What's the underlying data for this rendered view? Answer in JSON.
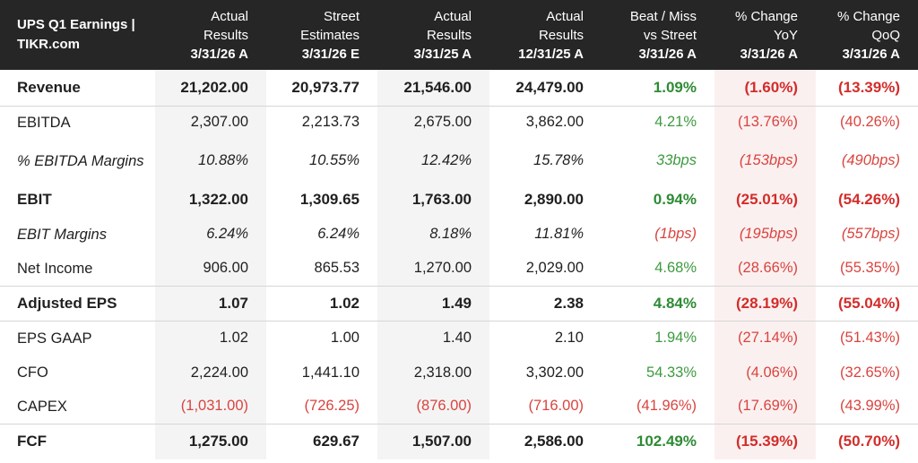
{
  "header": {
    "title_line1": "UPS Q1 Earnings |",
    "title_line2": "TIKR.com",
    "columns": [
      {
        "line1": "Actual",
        "line2": "Results",
        "date": "3/31/26 A"
      },
      {
        "line1": "Street",
        "line2": "Estimates",
        "date": "3/31/26 E"
      },
      {
        "line1": "Actual",
        "line2": "Results",
        "date": "3/31/25 A"
      },
      {
        "line1": "Actual",
        "line2": "Results",
        "date": "12/31/25 A"
      },
      {
        "line1": "Beat / Miss",
        "line2": "vs Street",
        "date": "3/31/26 A"
      },
      {
        "line1": "% Change",
        "line2": "YoY",
        "date": "3/31/26 A"
      },
      {
        "line1": "% Change",
        "line2": "QoQ",
        "date": "3/31/26 A"
      }
    ]
  },
  "rows": [
    {
      "label": "Revenue",
      "actual": "21,202.00",
      "street": "20,973.77",
      "prior_year": "21,546.00",
      "prior_quarter": "24,479.00",
      "beat_miss": "1.09%",
      "yoy": "(1.60%)",
      "qoq": "(13.39%)"
    },
    {
      "label": "EBITDA",
      "actual": "2,307.00",
      "street": "2,213.73",
      "prior_year": "2,675.00",
      "prior_quarter": "3,862.00",
      "beat_miss": "4.21%",
      "yoy": "(13.76%)",
      "qoq": "(40.26%)"
    },
    {
      "label": "% EBITDA Margins",
      "actual": "10.88%",
      "street": "10.55%",
      "prior_year": "12.42%",
      "prior_quarter": "15.78%",
      "beat_miss": "33bps",
      "yoy": "(153bps)",
      "qoq": "(490bps)"
    },
    {
      "label": "EBIT",
      "actual": "1,322.00",
      "street": "1,309.65",
      "prior_year": "1,763.00",
      "prior_quarter": "2,890.00",
      "beat_miss": "0.94%",
      "yoy": "(25.01%)",
      "qoq": "(54.26%)"
    },
    {
      "label": "EBIT Margins",
      "actual": "6.24%",
      "street": "6.24%",
      "prior_year": "8.18%",
      "prior_quarter": "11.81%",
      "beat_miss": "(1bps)",
      "yoy": "(195bps)",
      "qoq": "(557bps)"
    },
    {
      "label": "Net Income",
      "actual": "906.00",
      "street": "865.53",
      "prior_year": "1,270.00",
      "prior_quarter": "2,029.00",
      "beat_miss": "4.68%",
      "yoy": "(28.66%)",
      "qoq": "(55.35%)"
    },
    {
      "label": "Adjusted EPS",
      "actual": "1.07",
      "street": "1.02",
      "prior_year": "1.49",
      "prior_quarter": "2.38",
      "beat_miss": "4.84%",
      "yoy": "(28.19%)",
      "qoq": "(55.04%)"
    },
    {
      "label": "EPS GAAP",
      "actual": "1.02",
      "street": "1.00",
      "prior_year": "1.40",
      "prior_quarter": "2.10",
      "beat_miss": "1.94%",
      "yoy": "(27.14%)",
      "qoq": "(51.43%)"
    },
    {
      "label": "CFO",
      "actual": "2,224.00",
      "street": "1,441.10",
      "prior_year": "2,318.00",
      "prior_quarter": "3,302.00",
      "beat_miss": "54.33%",
      "yoy": "(4.06%)",
      "qoq": "(32.65%)"
    },
    {
      "label": "CAPEX",
      "actual": "(1,031.00)",
      "street": "(726.25)",
      "prior_year": "(876.00)",
      "prior_quarter": "(716.00)",
      "beat_miss": "(41.96%)",
      "yoy": "(17.69%)",
      "qoq": "(43.99%)"
    },
    {
      "label": "FCF",
      "actual": "1,275.00",
      "street": "629.67",
      "prior_year": "1,507.00",
      "prior_quarter": "2,586.00",
      "beat_miss": "102.49%",
      "yoy": "(15.39%)",
      "qoq": "(50.70%)"
    }
  ],
  "colors": {
    "header_bg": "#262626",
    "positive": "#3d9a3f",
    "negative": "#d9443f",
    "shaded_column": "#f4f4f4",
    "pink_column": "#fbf0f0"
  }
}
